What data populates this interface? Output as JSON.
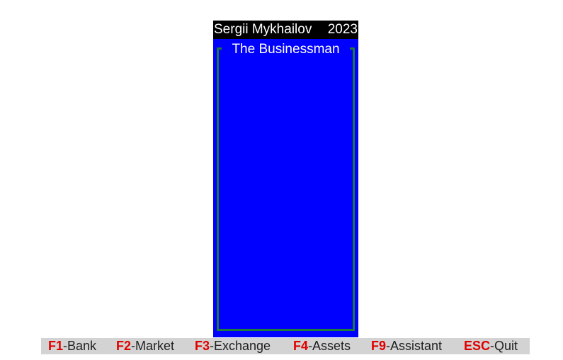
{
  "header": {
    "author": "Sergii Mykhailov",
    "year": "2023"
  },
  "panel": {
    "title": "The Businessman"
  },
  "footer": {
    "items": [
      {
        "key": "F1",
        "label": "-Bank"
      },
      {
        "key": "F2",
        "label": "-Market"
      },
      {
        "key": "F3",
        "label": "-Exchange"
      },
      {
        "key": "F4",
        "label": "-Assets"
      },
      {
        "key": "F9",
        "label": "-Assistant"
      },
      {
        "key": "ESC",
        "label": "-Quit"
      }
    ]
  },
  "colors": {
    "panel_bg": "#0000ff",
    "frame": "#1e7a3a",
    "hotkey": "#e00000",
    "footer_bg": "#d3d3d3",
    "header_bg": "#000000"
  }
}
